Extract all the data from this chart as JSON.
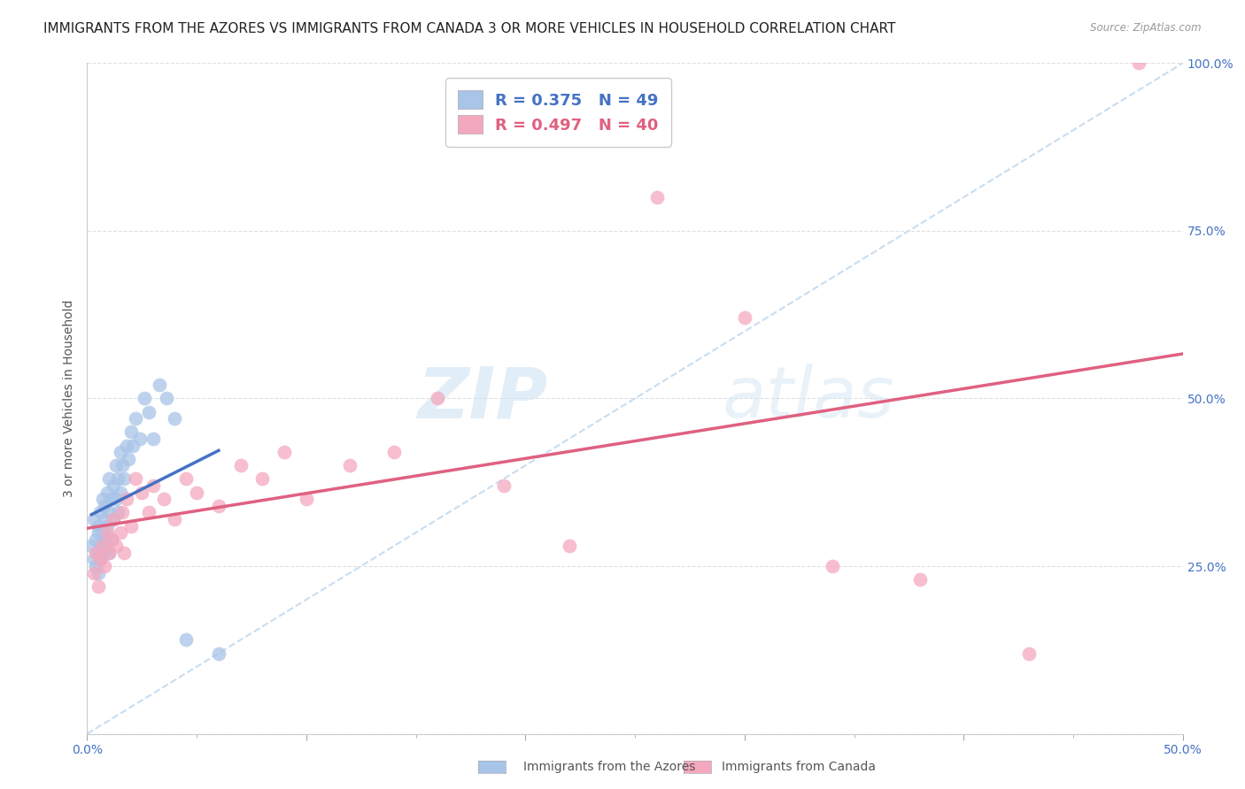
{
  "title": "IMMIGRANTS FROM THE AZORES VS IMMIGRANTS FROM CANADA 3 OR MORE VEHICLES IN HOUSEHOLD CORRELATION CHART",
  "source": "Source: ZipAtlas.com",
  "ylabel": "3 or more Vehicles in Household",
  "xlim": [
    0.0,
    0.5
  ],
  "ylim": [
    0.0,
    1.0
  ],
  "azores_color": "#a8c4e8",
  "canada_color": "#f4a8be",
  "azores_line_color": "#4472c4",
  "canada_line_color": "#e06080",
  "ref_line_color": "#c8ddf0",
  "legend_azores_label": "R = 0.375   N = 49",
  "legend_canada_label": "R = 0.497   N = 40",
  "watermark_zip": "ZIP",
  "watermark_atlas": "atlas",
  "background_color": "#ffffff",
  "grid_color": "#dddddd",
  "title_fontsize": 11,
  "label_fontsize": 10,
  "tick_fontsize": 10,
  "azores_x": [
    0.002,
    0.003,
    0.003,
    0.004,
    0.004,
    0.005,
    0.005,
    0.005,
    0.005,
    0.006,
    0.006,
    0.006,
    0.007,
    0.007,
    0.007,
    0.008,
    0.008,
    0.008,
    0.009,
    0.009,
    0.01,
    0.01,
    0.01,
    0.011,
    0.011,
    0.012,
    0.012,
    0.013,
    0.013,
    0.014,
    0.014,
    0.015,
    0.015,
    0.016,
    0.017,
    0.018,
    0.019,
    0.02,
    0.021,
    0.022,
    0.024,
    0.026,
    0.028,
    0.03,
    0.033,
    0.036,
    0.04,
    0.045,
    0.06
  ],
  "azores_y": [
    0.28,
    0.32,
    0.26,
    0.29,
    0.25,
    0.31,
    0.27,
    0.3,
    0.24,
    0.33,
    0.28,
    0.26,
    0.35,
    0.3,
    0.27,
    0.34,
    0.29,
    0.32,
    0.36,
    0.31,
    0.38,
    0.33,
    0.27,
    0.35,
    0.29,
    0.37,
    0.32,
    0.4,
    0.35,
    0.38,
    0.33,
    0.42,
    0.36,
    0.4,
    0.38,
    0.43,
    0.41,
    0.45,
    0.43,
    0.47,
    0.44,
    0.5,
    0.48,
    0.44,
    0.52,
    0.5,
    0.47,
    0.14,
    0.12
  ],
  "canada_x": [
    0.003,
    0.004,
    0.005,
    0.006,
    0.007,
    0.008,
    0.009,
    0.01,
    0.011,
    0.012,
    0.013,
    0.015,
    0.016,
    0.017,
    0.018,
    0.02,
    0.022,
    0.025,
    0.028,
    0.03,
    0.035,
    0.04,
    0.045,
    0.05,
    0.06,
    0.07,
    0.08,
    0.09,
    0.1,
    0.12,
    0.14,
    0.16,
    0.19,
    0.22,
    0.26,
    0.3,
    0.34,
    0.38,
    0.43,
    0.48
  ],
  "canada_y": [
    0.24,
    0.27,
    0.22,
    0.26,
    0.28,
    0.25,
    0.3,
    0.27,
    0.29,
    0.32,
    0.28,
    0.3,
    0.33,
    0.27,
    0.35,
    0.31,
    0.38,
    0.36,
    0.33,
    0.37,
    0.35,
    0.32,
    0.38,
    0.36,
    0.34,
    0.4,
    0.38,
    0.42,
    0.35,
    0.4,
    0.42,
    0.5,
    0.37,
    0.28,
    0.8,
    0.62,
    0.25,
    0.23,
    0.12,
    1.0
  ]
}
